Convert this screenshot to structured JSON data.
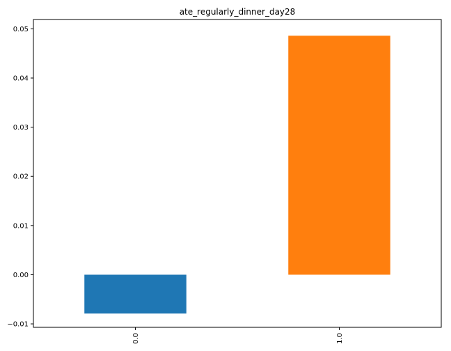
{
  "chart_data": {
    "type": "bar",
    "title": "ate_regularly_dinner_day28",
    "xlabel": "",
    "ylabel": "",
    "categories": [
      "0.0",
      "1.0"
    ],
    "values": [
      -0.0079,
      0.0486
    ],
    "colors": [
      "#1f77b4",
      "#ff7f0e"
    ],
    "ylim": [
      -0.0107,
      0.0519
    ],
    "yticks": [
      -0.01,
      0.0,
      0.01,
      0.02,
      0.03,
      0.04,
      0.05
    ],
    "ytick_labels": [
      "−0.01",
      "0.00",
      "0.01",
      "0.02",
      "0.03",
      "0.04",
      "0.05"
    ],
    "grid": false,
    "legend": false
  }
}
